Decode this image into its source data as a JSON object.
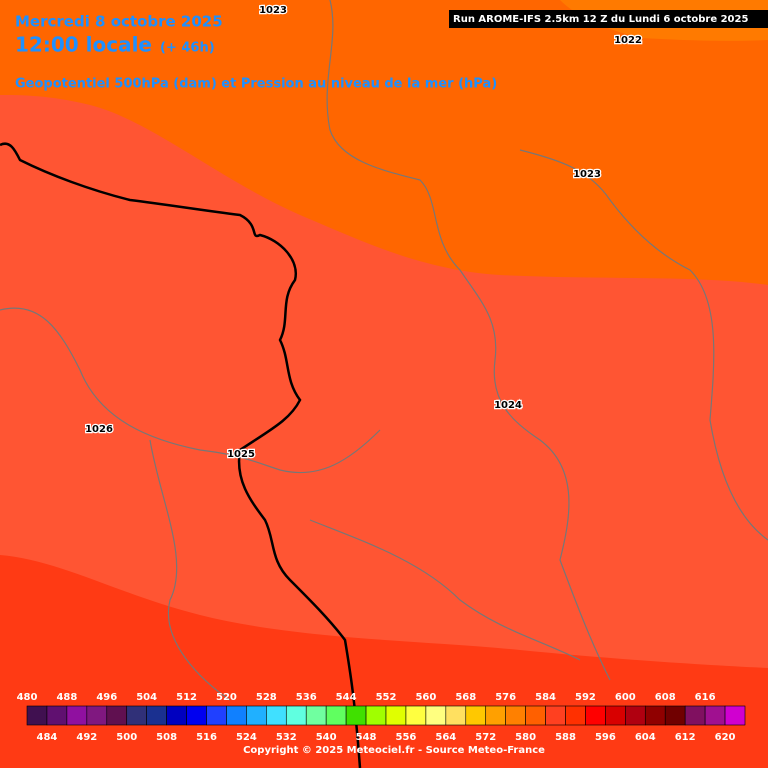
{
  "header": {
    "date": "Mercredi 8 octobre 2025",
    "time": "12:00 locale",
    "lead": "(+ 46h)",
    "subtitle": "Geopotentiel 500hPa (dam) et Pression au niveau de la mer (hPa)",
    "run": "Run AROME-IFS 2.5km 12 Z du Lundi 6 octobre 2025"
  },
  "isobar_labels": [
    "1023",
    "1022",
    "1023",
    "1024",
    "1026",
    "1025"
  ],
  "colorbar": {
    "values": [
      480,
      484,
      488,
      492,
      496,
      500,
      504,
      508,
      512,
      516,
      520,
      524,
      528,
      532,
      536,
      540,
      544,
      548,
      552,
      556,
      560,
      564,
      568,
      572,
      576,
      580,
      584,
      588,
      592,
      596,
      600,
      604,
      608,
      612,
      616,
      620
    ],
    "colors": [
      "#401050",
      "#601070",
      "#9010a0",
      "#801880",
      "#601050",
      "#303078",
      "#1a3090",
      "#0000c0",
      "#0000f0",
      "#2040ff",
      "#1080ff",
      "#20b0ff",
      "#40e0ff",
      "#60ffe0",
      "#70ffa0",
      "#60ff60",
      "#40e000",
      "#a0ff00",
      "#e0ff00",
      "#ffff40",
      "#ffff80",
      "#ffe060",
      "#ffc800",
      "#ffa000",
      "#ff8000",
      "#ff6000",
      "#ff4020",
      "#ff3000",
      "#ff0000",
      "#d80000",
      "#b00010",
      "#900000",
      "#700000",
      "#801060",
      "#a01090",
      "#d000d0",
      "#ff00ff",
      "#ff80ff"
    ]
  },
  "footer": {
    "copyright": "Copyright © 2025 Meteociel.fr - Source Meteo-France"
  }
}
